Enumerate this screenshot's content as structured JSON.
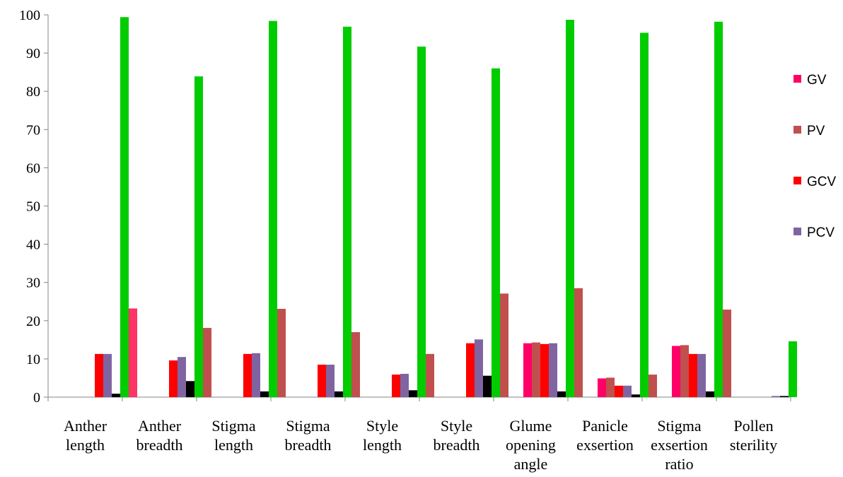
{
  "chart_data": {
    "type": "bar",
    "title": "",
    "xlabel": "",
    "ylabel": "",
    "ylim": [
      0,
      100
    ],
    "yticks": [
      0,
      10,
      20,
      30,
      40,
      50,
      60,
      70,
      80,
      90,
      100
    ],
    "grid": false,
    "legend_position": "right",
    "categories": [
      [
        "Anther",
        "length"
      ],
      [
        "Anther",
        "breadth"
      ],
      [
        "Stigma",
        "length"
      ],
      [
        "Stigma",
        "breadth"
      ],
      [
        "Style",
        "length"
      ],
      [
        "Style",
        "breadth"
      ],
      [
        "Glume",
        "opening",
        "angle"
      ],
      [
        "Panicle",
        "exsertion"
      ],
      [
        "Stigma",
        "exsertion",
        "ratio"
      ],
      [
        "Pollen",
        "sterility"
      ]
    ],
    "series": [
      {
        "name": "GV",
        "color": "#FF0066",
        "values": [
          0,
          0,
          0,
          0,
          0,
          0,
          14.1,
          4.9,
          13.4,
          0
        ]
      },
      {
        "name": "PV",
        "color": "#C0504D",
        "values": [
          0,
          0,
          0,
          0,
          0,
          0,
          14.3,
          5.1,
          13.6,
          0
        ]
      },
      {
        "name": "GCV",
        "color": "#FF0000",
        "values": [
          11.3,
          9.6,
          11.3,
          8.5,
          5.9,
          14.1,
          13.9,
          3.0,
          11.3,
          0
        ]
      },
      {
        "name": "PCV",
        "color": "#8064A2",
        "values": [
          11.3,
          10.5,
          11.5,
          8.5,
          6.1,
          15.1,
          14.1,
          3.0,
          11.3,
          0.3
        ]
      },
      {
        "name": "",
        "color": "#000000",
        "values": [
          0.9,
          4.2,
          1.5,
          1.5,
          1.8,
          5.6,
          1.5,
          0.7,
          1.5,
          0.3
        ]
      },
      {
        "name": "",
        "color": "#00CC00",
        "values": [
          99.4,
          83.9,
          98.4,
          96.9,
          91.7,
          86.0,
          98.7,
          95.3,
          98.2,
          14.6
        ]
      },
      {
        "name": "",
        "color": "#C0504D",
        "values": [
          23.2,
          18.1,
          23.1,
          17.0,
          11.3,
          27.1,
          28.5,
          5.9,
          22.9,
          0
        ]
      }
    ],
    "bar_overrides": [
      {
        "category_index": 0,
        "series_index": 6,
        "color": "#FF3366"
      }
    ],
    "legend": [
      {
        "label": "GV",
        "color": "#FF0066"
      },
      {
        "label": "PV",
        "color": "#C0504D"
      },
      {
        "label": "GCV",
        "color": "#FF0000"
      },
      {
        "label": "PCV",
        "color": "#8064A2"
      }
    ]
  }
}
